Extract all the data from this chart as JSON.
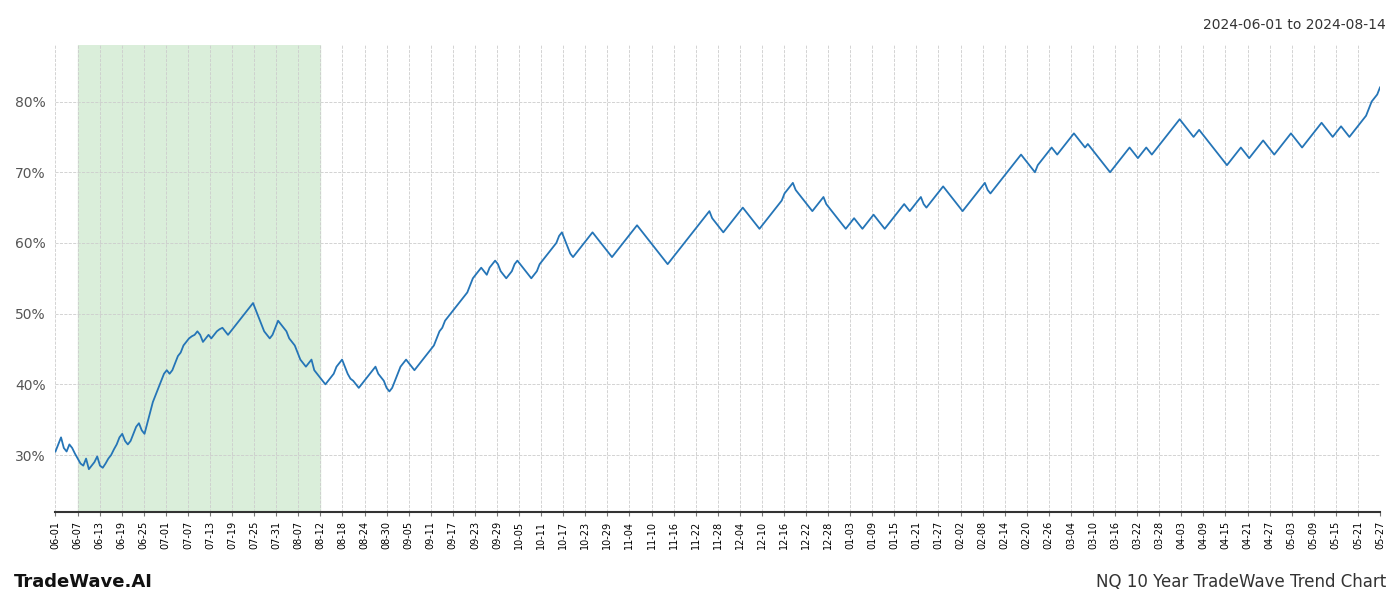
{
  "title_top_right": "2024-06-01 to 2024-08-14",
  "title_bottom_left": "TradeWave.AI",
  "title_bottom_right": "NQ 10 Year TradeWave Trend Chart",
  "line_color": "#2575b7",
  "line_width": 1.3,
  "shaded_region_color": "#daeeda",
  "shaded_xstart_idx": 1,
  "shaded_xend_idx": 12,
  "ylim": [
    22,
    88
  ],
  "yticks": [
    30,
    40,
    50,
    60,
    70,
    80
  ],
  "background_color": "#ffffff",
  "grid_color": "#cccccc",
  "x_labels": [
    "06-01",
    "06-07",
    "06-13",
    "06-19",
    "06-25",
    "07-01",
    "07-07",
    "07-13",
    "07-19",
    "07-25",
    "07-31",
    "08-07",
    "08-12",
    "08-18",
    "08-24",
    "08-30",
    "09-05",
    "09-11",
    "09-17",
    "09-23",
    "09-29",
    "10-05",
    "10-11",
    "10-17",
    "10-23",
    "10-29",
    "11-04",
    "11-10",
    "11-16",
    "11-22",
    "11-28",
    "12-04",
    "12-10",
    "12-16",
    "12-22",
    "12-28",
    "01-03",
    "01-09",
    "01-15",
    "01-21",
    "01-27",
    "02-02",
    "02-08",
    "02-14",
    "02-20",
    "02-26",
    "03-04",
    "03-10",
    "03-16",
    "03-22",
    "03-28",
    "04-03",
    "04-09",
    "04-15",
    "04-21",
    "04-27",
    "05-03",
    "05-09",
    "05-15",
    "05-21",
    "05-27"
  ],
  "y_values": [
    30.5,
    31.5,
    32.5,
    31.0,
    30.5,
    31.5,
    31.0,
    30.2,
    29.5,
    28.8,
    28.5,
    29.5,
    28.0,
    28.5,
    29.0,
    29.8,
    28.5,
    28.2,
    28.8,
    29.5,
    30.0,
    30.8,
    31.5,
    32.5,
    33.0,
    32.0,
    31.5,
    32.0,
    33.0,
    34.0,
    34.5,
    33.5,
    33.0,
    34.5,
    36.0,
    37.5,
    38.5,
    39.5,
    40.5,
    41.5,
    42.0,
    41.5,
    42.0,
    43.0,
    44.0,
    44.5,
    45.5,
    46.0,
    46.5,
    46.8,
    47.0,
    47.5,
    47.0,
    46.0,
    46.5,
    47.0,
    46.5,
    47.0,
    47.5,
    47.8,
    48.0,
    47.5,
    47.0,
    47.5,
    48.0,
    48.5,
    49.0,
    49.5,
    50.0,
    50.5,
    51.0,
    51.5,
    50.5,
    49.5,
    48.5,
    47.5,
    47.0,
    46.5,
    47.0,
    48.0,
    49.0,
    48.5,
    48.0,
    47.5,
    46.5,
    46.0,
    45.5,
    44.5,
    43.5,
    43.0,
    42.5,
    43.0,
    43.5,
    42.0,
    41.5,
    41.0,
    40.5,
    40.0,
    40.5,
    41.0,
    41.5,
    42.5,
    43.0,
    43.5,
    42.5,
    41.5,
    40.8,
    40.5,
    40.0,
    39.5,
    40.0,
    40.5,
    41.0,
    41.5,
    42.0,
    42.5,
    41.5,
    41.0,
    40.5,
    39.5,
    39.0,
    39.5,
    40.5,
    41.5,
    42.5,
    43.0,
    43.5,
    43.0,
    42.5,
    42.0,
    42.5,
    43.0,
    43.5,
    44.0,
    44.5,
    45.0,
    45.5,
    46.5,
    47.5,
    48.0,
    49.0,
    49.5,
    50.0,
    50.5,
    51.0,
    51.5,
    52.0,
    52.5,
    53.0,
    54.0,
    55.0,
    55.5,
    56.0,
    56.5,
    56.0,
    55.5,
    56.5,
    57.0,
    57.5,
    57.0,
    56.0,
    55.5,
    55.0,
    55.5,
    56.0,
    57.0,
    57.5,
    57.0,
    56.5,
    56.0,
    55.5,
    55.0,
    55.5,
    56.0,
    57.0,
    57.5,
    58.0,
    58.5,
    59.0,
    59.5,
    60.0,
    61.0,
    61.5,
    60.5,
    59.5,
    58.5,
    58.0,
    58.5,
    59.0,
    59.5,
    60.0,
    60.5,
    61.0,
    61.5,
    61.0,
    60.5,
    60.0,
    59.5,
    59.0,
    58.5,
    58.0,
    58.5,
    59.0,
    59.5,
    60.0,
    60.5,
    61.0,
    61.5,
    62.0,
    62.5,
    62.0,
    61.5,
    61.0,
    60.5,
    60.0,
    59.5,
    59.0,
    58.5,
    58.0,
    57.5,
    57.0,
    57.5,
    58.0,
    58.5,
    59.0,
    59.5,
    60.0,
    60.5,
    61.0,
    61.5,
    62.0,
    62.5,
    63.0,
    63.5,
    64.0,
    64.5,
    63.5,
    63.0,
    62.5,
    62.0,
    61.5,
    62.0,
    62.5,
    63.0,
    63.5,
    64.0,
    64.5,
    65.0,
    64.5,
    64.0,
    63.5,
    63.0,
    62.5,
    62.0,
    62.5,
    63.0,
    63.5,
    64.0,
    64.5,
    65.0,
    65.5,
    66.0,
    67.0,
    67.5,
    68.0,
    68.5,
    67.5,
    67.0,
    66.5,
    66.0,
    65.5,
    65.0,
    64.5,
    65.0,
    65.5,
    66.0,
    66.5,
    65.5,
    65.0,
    64.5,
    64.0,
    63.5,
    63.0,
    62.5,
    62.0,
    62.5,
    63.0,
    63.5,
    63.0,
    62.5,
    62.0,
    62.5,
    63.0,
    63.5,
    64.0,
    63.5,
    63.0,
    62.5,
    62.0,
    62.5,
    63.0,
    63.5,
    64.0,
    64.5,
    65.0,
    65.5,
    65.0,
    64.5,
    65.0,
    65.5,
    66.0,
    66.5,
    65.5,
    65.0,
    65.5,
    66.0,
    66.5,
    67.0,
    67.5,
    68.0,
    67.5,
    67.0,
    66.5,
    66.0,
    65.5,
    65.0,
    64.5,
    65.0,
    65.5,
    66.0,
    66.5,
    67.0,
    67.5,
    68.0,
    68.5,
    67.5,
    67.0,
    67.5,
    68.0,
    68.5,
    69.0,
    69.5,
    70.0,
    70.5,
    71.0,
    71.5,
    72.0,
    72.5,
    72.0,
    71.5,
    71.0,
    70.5,
    70.0,
    71.0,
    71.5,
    72.0,
    72.5,
    73.0,
    73.5,
    73.0,
    72.5,
    73.0,
    73.5,
    74.0,
    74.5,
    75.0,
    75.5,
    75.0,
    74.5,
    74.0,
    73.5,
    74.0,
    73.5,
    73.0,
    72.5,
    72.0,
    71.5,
    71.0,
    70.5,
    70.0,
    70.5,
    71.0,
    71.5,
    72.0,
    72.5,
    73.0,
    73.5,
    73.0,
    72.5,
    72.0,
    72.5,
    73.0,
    73.5,
    73.0,
    72.5,
    73.0,
    73.5,
    74.0,
    74.5,
    75.0,
    75.5,
    76.0,
    76.5,
    77.0,
    77.5,
    77.0,
    76.5,
    76.0,
    75.5,
    75.0,
    75.5,
    76.0,
    75.5,
    75.0,
    74.5,
    74.0,
    73.5,
    73.0,
    72.5,
    72.0,
    71.5,
    71.0,
    71.5,
    72.0,
    72.5,
    73.0,
    73.5,
    73.0,
    72.5,
    72.0,
    72.5,
    73.0,
    73.5,
    74.0,
    74.5,
    74.0,
    73.5,
    73.0,
    72.5,
    73.0,
    73.5,
    74.0,
    74.5,
    75.0,
    75.5,
    75.0,
    74.5,
    74.0,
    73.5,
    74.0,
    74.5,
    75.0,
    75.5,
    76.0,
    76.5,
    77.0,
    76.5,
    76.0,
    75.5,
    75.0,
    75.5,
    76.0,
    76.5,
    76.0,
    75.5,
    75.0,
    75.5,
    76.0,
    76.5,
    77.0,
    77.5,
    78.0,
    79.0,
    80.0,
    80.5,
    81.0,
    82.0
  ]
}
